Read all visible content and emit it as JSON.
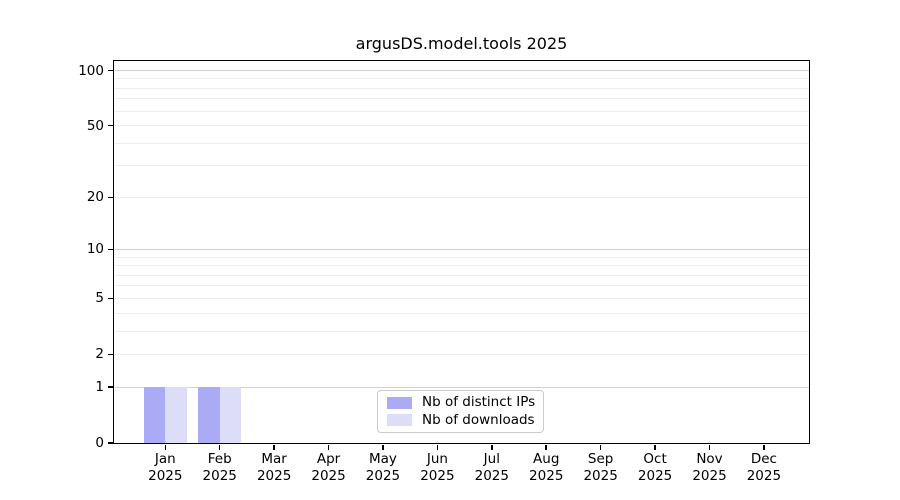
{
  "chart_data": {
    "type": "bar",
    "title": "argusDS.model.tools 2025",
    "categories": [
      {
        "month": "Jan",
        "year": "2025"
      },
      {
        "month": "Feb",
        "year": "2025"
      },
      {
        "month": "Mar",
        "year": "2025"
      },
      {
        "month": "Apr",
        "year": "2025"
      },
      {
        "month": "May",
        "year": "2025"
      },
      {
        "month": "Jun",
        "year": "2025"
      },
      {
        "month": "Jul",
        "year": "2025"
      },
      {
        "month": "Aug",
        "year": "2025"
      },
      {
        "month": "Sep",
        "year": "2025"
      },
      {
        "month": "Oct",
        "year": "2025"
      },
      {
        "month": "Nov",
        "year": "2025"
      },
      {
        "month": "Dec",
        "year": "2025"
      }
    ],
    "series": [
      {
        "name": "Nb of distinct IPs",
        "color": "#ababf5",
        "values": [
          1,
          1,
          0,
          0,
          0,
          0,
          0,
          0,
          0,
          0,
          0,
          0
        ]
      },
      {
        "name": "Nb of downloads",
        "color": "#ddddf8",
        "values": [
          1,
          1,
          0,
          0,
          0,
          0,
          0,
          0,
          0,
          0,
          0,
          0
        ]
      }
    ],
    "yscale": "log1p",
    "ylim": [
      0,
      113
    ],
    "yticks": [
      0,
      1,
      2,
      5,
      10,
      20,
      50,
      100
    ],
    "major_gridlines": [
      1,
      10,
      100
    ],
    "minor_gridlines": [
      2,
      3,
      4,
      5,
      6,
      7,
      8,
      9,
      20,
      30,
      40,
      50,
      60,
      70,
      80,
      90
    ],
    "grid": "horizontal",
    "legend_position": "lower center",
    "colors": {
      "major_grid": "#d2d2d2",
      "minor_grid": "#ececec",
      "spine": "#000000",
      "text": "#000000",
      "background": "#ffffff"
    }
  }
}
